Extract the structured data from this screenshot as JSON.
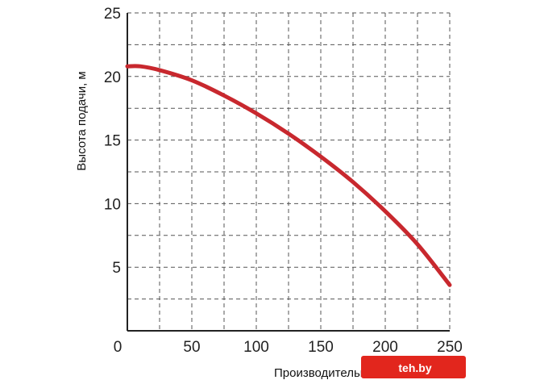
{
  "chart_data": {
    "type": "line",
    "ylabel": "Высота подачи, м",
    "xlabel": "Производительность, л/мин",
    "xlim": [
      0,
      250
    ],
    "ylim": [
      0,
      25
    ],
    "x_ticks": [
      0,
      50,
      100,
      150,
      200,
      250
    ],
    "y_ticks": [
      5,
      10,
      15,
      20,
      25
    ],
    "x_grid_step": 25,
    "y_grid_step": 2.5,
    "grid": true,
    "grid_style": "dashed",
    "series": [
      {
        "color": "#c8282e",
        "x": [
          0,
          10,
          25,
          50,
          75,
          100,
          125,
          150,
          175,
          200,
          225,
          250
        ],
        "y": [
          20.8,
          20.8,
          20.5,
          19.7,
          18.5,
          17.1,
          15.5,
          13.7,
          11.7,
          9.4,
          6.8,
          3.6
        ]
      }
    ]
  },
  "watermark": {
    "text": "teh.by",
    "color": "#e2261d"
  }
}
